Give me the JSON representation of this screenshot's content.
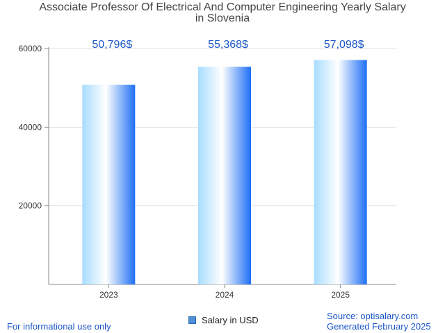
{
  "title_line1": "Associate Professor Of Electrical And Computer Engineering Yearly Salary",
  "title_line2": "in Slovenia",
  "legend_label": "Salary in USD",
  "footer_left": "For informational use only",
  "footer_source": "Source: optisalary.com",
  "footer_generated": "Generated February 2025",
  "colors": {
    "bar_left": "#a8dcff",
    "bar_mid": "#ffffff",
    "bar_right": "#1e6ff5",
    "value_label": "#1a56c8"
  },
  "chart_data": {
    "type": "bar",
    "categories": [
      "2023",
      "2024",
      "2025"
    ],
    "series": [
      {
        "name": "Salary in USD",
        "values": [
          50796,
          55368,
          57098
        ]
      }
    ],
    "value_labels": [
      "50,796$",
      "55,368$",
      "57,098$"
    ],
    "yticks": [
      20000,
      40000,
      60000
    ],
    "ylim": [
      0,
      60000
    ],
    "grid": true,
    "legend": "bottom-center"
  }
}
